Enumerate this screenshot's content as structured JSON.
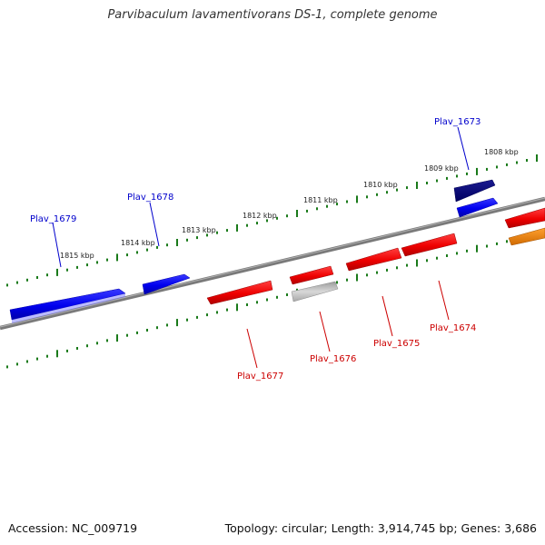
{
  "title": "Parvibaculum lavamentivorans DS-1, complete genome",
  "footer": {
    "accession": "Accession: NC_009719",
    "summary": "Topology: circular; Length: 3,914,745 bp; Genes: 3,686"
  },
  "colors": {
    "forward_gene": "#0000ee",
    "forward_gene_dark": "#000080",
    "reverse_gene": "#ee0000",
    "pseudo_gene": "#b8b8b8",
    "other_gene": "#ff8c00",
    "ticks": "#1a7a1a",
    "axis": "#808080",
    "forward_label": "#0000cc",
    "reverse_label": "#cc0000"
  },
  "scale_labels": [
    "1815 kbp",
    "1814 kbp",
    "1813 kbp",
    "1812 kbp",
    "1811 kbp",
    "1810 kbp",
    "1809 kbp",
    "1808 kbp"
  ],
  "gene_labels": [
    "Plav_1679",
    "Plav_1678",
    "Plav_1673",
    "Plav_1677",
    "Plav_1676",
    "Plav_1675",
    "Plav_1674"
  ]
}
